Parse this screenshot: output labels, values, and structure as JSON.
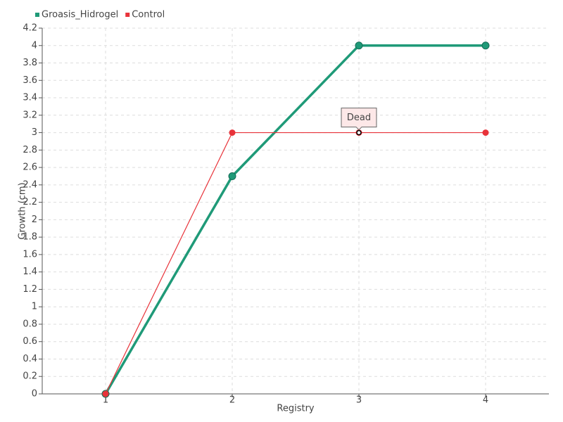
{
  "chart_data": {
    "type": "line",
    "x_label": "Registry",
    "y_label": "Growth (cm)",
    "x": [
      1,
      2,
      3,
      4
    ],
    "series": [
      {
        "name": "Groasis_Hidrogel",
        "color": "#1f9a78",
        "values": [
          0,
          2.5,
          4,
          4
        ]
      },
      {
        "name": "Control",
        "color": "#e8333a",
        "values": [
          0,
          3,
          3,
          3
        ]
      }
    ],
    "xlim": [
      0.5,
      4.5
    ],
    "xticks": [
      1,
      2,
      3,
      4
    ],
    "ylim": [
      0,
      4.2
    ],
    "yticks": [
      0,
      0.2,
      0.4,
      0.6,
      0.8,
      1,
      1.2,
      1.4,
      1.6,
      1.8,
      2,
      2.2,
      2.4,
      2.6,
      2.8,
      3,
      3.2,
      3.4,
      3.6,
      3.8,
      4,
      4.2
    ],
    "grid": true,
    "legend": "top-left",
    "annotations": [
      {
        "text": "Dead",
        "x": 3,
        "y": 3
      }
    ]
  }
}
